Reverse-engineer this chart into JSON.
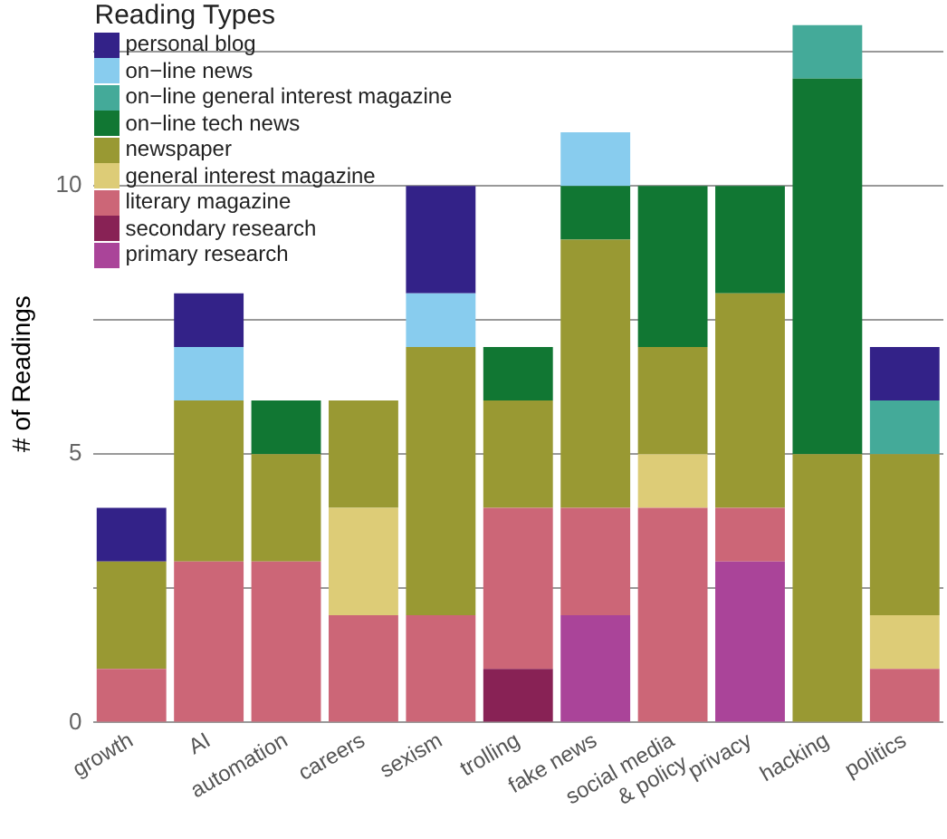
{
  "chart_data": {
    "type": "bar",
    "stacked": true,
    "ylabel": "# of Readings",
    "legend_title": "Reading Types",
    "legend": "top left",
    "grid": "y",
    "categories": [
      "growth",
      "AI",
      "automation",
      "careers",
      "sexism",
      "trolling",
      "fake news",
      "social media & policy",
      "privacy",
      "hacking",
      "politics"
    ],
    "ylim": [
      0,
      13
    ],
    "yticks": [
      0,
      {
        "value": 2.5,
        "label": null
      },
      5,
      {
        "value": 7.5,
        "label": null
      },
      10,
      {
        "value": 12.5,
        "label": null
      }
    ],
    "series": [
      {
        "name": "primary research",
        "color": "#aa4499",
        "values": [
          0,
          0,
          0,
          0,
          0,
          0,
          2,
          0,
          3,
          0,
          0
        ]
      },
      {
        "name": "secondary research",
        "color": "#882255",
        "values": [
          0,
          0,
          0,
          0,
          0,
          1,
          0,
          0,
          0,
          0,
          0
        ]
      },
      {
        "name": "literary magazine",
        "color": "#cc6677",
        "values": [
          1,
          3,
          3,
          2,
          2,
          3,
          2,
          4,
          1,
          0,
          1
        ]
      },
      {
        "name": "general interest magazine",
        "color": "#ddcc77",
        "values": [
          0,
          0,
          0,
          2,
          0,
          0,
          0,
          1,
          0,
          0,
          1
        ]
      },
      {
        "name": "newspaper",
        "color": "#999933",
        "values": [
          2,
          3,
          2,
          2,
          5,
          2,
          5,
          2,
          4,
          5,
          3
        ]
      },
      {
        "name": "on−line tech news",
        "color": "#117733",
        "values": [
          0,
          0,
          1,
          0,
          0,
          1,
          1,
          3,
          2,
          7,
          0
        ]
      },
      {
        "name": "on−line general interest magazine",
        "color": "#44aa99",
        "values": [
          0,
          0,
          0,
          0,
          0,
          0,
          0,
          0,
          0,
          1,
          1
        ]
      },
      {
        "name": "on−line news",
        "color": "#88ccee",
        "values": [
          0,
          1,
          0,
          0,
          1,
          0,
          1,
          0,
          0,
          0,
          0
        ]
      },
      {
        "name": "personal blog",
        "color": "#332288",
        "values": [
          1,
          1,
          0,
          0,
          2,
          0,
          0,
          0,
          0,
          0,
          1
        ]
      }
    ]
  }
}
